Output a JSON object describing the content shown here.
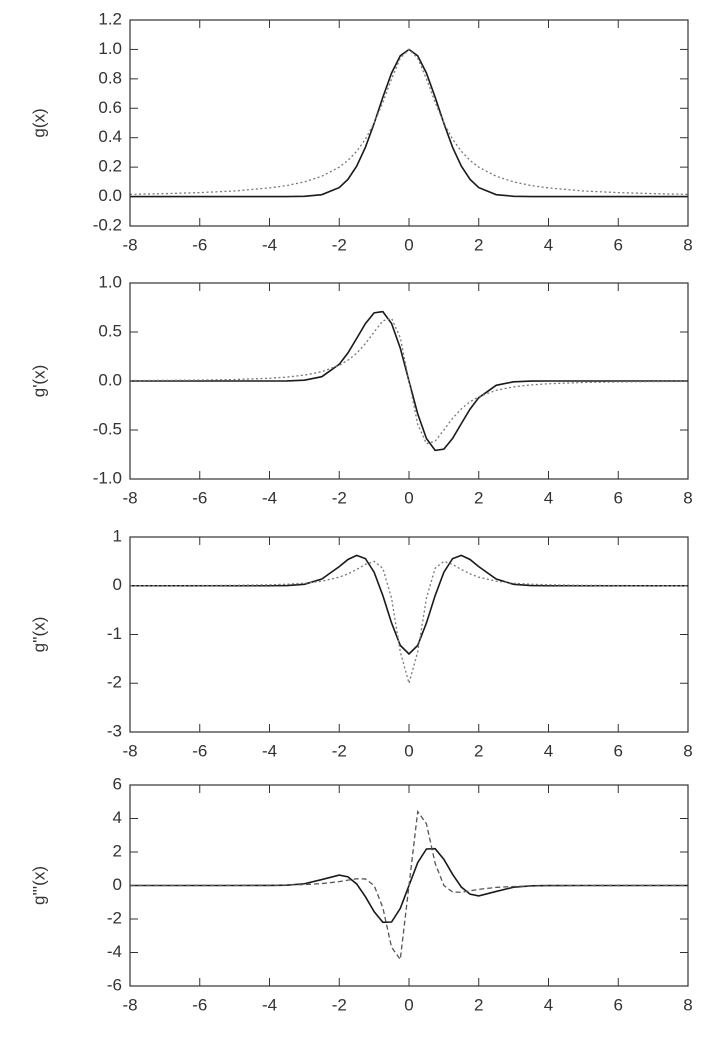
{
  "chart_data": [
    {
      "type": "line",
      "ylabel": "g(x)",
      "xlim": [
        -8,
        8
      ],
      "xticks": [
        -8,
        -6,
        -4,
        -2,
        0,
        2,
        4,
        6,
        8
      ],
      "ylim": [
        -0.2,
        1.2
      ],
      "yticks": [
        -0.2,
        {
          "value": 0,
          "label": "0.0"
        },
        0.2,
        0.4,
        0.6,
        0.8,
        {
          "value": 1,
          "label": "1.0"
        },
        1.2
      ],
      "x": [
        -8,
        -7,
        -6,
        -5,
        -4,
        -3.5,
        -3,
        -2.5,
        -2,
        -1.75,
        -1.5,
        -1.25,
        -1,
        -0.75,
        -0.5,
        -0.25,
        0,
        0.25,
        0.5,
        0.75,
        1,
        1.25,
        1.5,
        1.75,
        2,
        2.5,
        3,
        3.5,
        4,
        5,
        6,
        7,
        8
      ],
      "series": [
        {
          "color": "#1a1a1a",
          "dash": "solid",
          "values": [
            0,
            0,
            0,
            0,
            0,
            0,
            0.002,
            0.013,
            0.061,
            0.117,
            0.207,
            0.335,
            0.497,
            0.675,
            0.839,
            0.957,
            1,
            0.957,
            0.839,
            0.675,
            0.497,
            0.335,
            0.207,
            0.117,
            0.061,
            0.013,
            0.002,
            0,
            0,
            0,
            0,
            0,
            0
          ]
        },
        {
          "color": "#777777",
          "dash": "dotted",
          "values": [
            0.015,
            0.02,
            0.027,
            0.038,
            0.059,
            0.075,
            0.1,
            0.138,
            0.2,
            0.246,
            0.308,
            0.39,
            0.5,
            0.64,
            0.8,
            0.941,
            1,
            0.941,
            0.8,
            0.64,
            0.5,
            0.39,
            0.308,
            0.246,
            0.2,
            0.138,
            0.1,
            0.075,
            0.059,
            0.038,
            0.027,
            0.02,
            0.015
          ]
        }
      ]
    },
    {
      "type": "line",
      "ylabel": "g'(x)",
      "xlim": [
        -8,
        8
      ],
      "xticks": [
        -8,
        -6,
        -4,
        -2,
        0,
        2,
        4,
        6,
        8
      ],
      "ylim": [
        -1,
        1
      ],
      "yticks": [
        {
          "value": -1,
          "label": "-1.0"
        },
        -0.5,
        {
          "value": 0,
          "label": "0.0"
        },
        0.5,
        {
          "value": 1,
          "label": "1.0"
        }
      ],
      "x": [
        -8,
        -7,
        -6,
        -5,
        -4,
        -3.5,
        -3,
        -2.5,
        -2,
        -1.75,
        -1.5,
        -1.25,
        -1,
        -0.75,
        -0.5,
        -0.25,
        0,
        0.25,
        0.5,
        0.75,
        1,
        1.25,
        1.5,
        1.75,
        2,
        2.5,
        3,
        3.5,
        4,
        5,
        6,
        7,
        8
      ],
      "series": [
        {
          "color": "#1a1a1a",
          "dash": "solid",
          "values": [
            0,
            0,
            0,
            0,
            0,
            0.001,
            0.008,
            0.044,
            0.17,
            0.287,
            0.435,
            0.586,
            0.695,
            0.708,
            0.587,
            0.335,
            0,
            -0.335,
            -0.587,
            -0.708,
            -0.695,
            -0.586,
            -0.435,
            -0.287,
            -0.17,
            -0.044,
            -0.008,
            -0.001,
            0,
            0,
            0,
            0,
            0
          ]
        },
        {
          "color": "#777777",
          "dash": "dotted",
          "values": [
            0.004,
            0.006,
            0.009,
            0.015,
            0.028,
            0.04,
            0.06,
            0.095,
            0.16,
            0.212,
            0.284,
            0.381,
            0.5,
            0.614,
            0.64,
            0.443,
            0,
            -0.443,
            -0.64,
            -0.614,
            -0.5,
            -0.381,
            -0.284,
            -0.212,
            -0.16,
            -0.095,
            -0.06,
            -0.04,
            -0.028,
            -0.015,
            -0.009,
            -0.006,
            -0.004
          ]
        }
      ]
    },
    {
      "type": "line",
      "ylabel": "g''(x)",
      "xlim": [
        -8,
        8
      ],
      "xticks": [
        -8,
        -6,
        -4,
        -2,
        0,
        2,
        4,
        6,
        8
      ],
      "ylim": [
        -3,
        1
      ],
      "yticks": [
        -3,
        -2,
        -1,
        0,
        1
      ],
      "x": [
        -8,
        -7,
        -6,
        -5,
        -4,
        -3.5,
        -3,
        -2.5,
        -2,
        -1.75,
        -1.5,
        -1.25,
        -1,
        -0.75,
        -0.5,
        -0.25,
        0,
        0.25,
        0.5,
        0.75,
        1,
        1.25,
        1.5,
        1.75,
        2,
        2.5,
        3,
        3.5,
        4,
        5,
        6,
        7,
        8
      ],
      "series": [
        {
          "color": "#1a1a1a",
          "dash": "solid",
          "values": [
            0,
            0,
            0,
            0,
            0,
            0.004,
            0.03,
            0.137,
            0.393,
            0.539,
            0.623,
            0.557,
            0.278,
            -0.201,
            -0.763,
            -1.223,
            -1.4,
            -1.223,
            -0.763,
            -0.201,
            0.278,
            0.557,
            0.623,
            0.539,
            0.393,
            0.137,
            0.03,
            0.004,
            0,
            0,
            0,
            0,
            0
          ]
        },
        {
          "color": "#777777",
          "dash": "dotted",
          "values": [
            0.001,
            0.002,
            0.004,
            0.008,
            0.019,
            0.031,
            0.052,
            0.093,
            0.176,
            0.244,
            0.335,
            0.438,
            0.5,
            0.36,
            -0.256,
            -1.355,
            -2,
            -1.355,
            -0.256,
            0.36,
            0.5,
            0.438,
            0.335,
            0.244,
            0.176,
            0.093,
            0.052,
            0.031,
            0.019,
            0.008,
            0.004,
            0.002,
            0.001
          ]
        }
      ]
    },
    {
      "type": "line",
      "ylabel": "g'''(x)",
      "xlim": [
        -8,
        8
      ],
      "xticks": [
        -8,
        -6,
        -4,
        -2,
        0,
        2,
        4,
        6,
        8
      ],
      "ylim": [
        -6,
        6
      ],
      "yticks": [
        -6,
        -4,
        -2,
        0,
        2,
        4,
        6
      ],
      "x": [
        -8,
        -7,
        -6,
        -5,
        -4,
        -3.5,
        -3,
        -2.5,
        -2,
        -1.75,
        -1.5,
        -1.25,
        -1,
        -0.75,
        -0.5,
        -0.25,
        0,
        0.25,
        0.5,
        0.75,
        1,
        1.25,
        1.5,
        1.75,
        2,
        2.5,
        3,
        3.5,
        4,
        5,
        6,
        7,
        8
      ],
      "series": [
        {
          "color": "#1a1a1a",
          "dash": "solid",
          "values": [
            0,
            0,
            0,
            0,
            0.002,
            0.018,
            0.104,
            0.355,
            0.622,
            0.517,
            0.091,
            -0.667,
            -1.559,
            -2.195,
            -2.179,
            -1.366,
            0,
            1.366,
            2.179,
            2.195,
            1.559,
            0.667,
            -0.091,
            -0.517,
            -0.622,
            -0.355,
            -0.104,
            -0.018,
            -0.002,
            0,
            0,
            0,
            0
          ]
        },
        {
          "color": "#555555",
          "dash": "dashed",
          "values": [
            0.001,
            0.001,
            0.003,
            0.006,
            0.017,
            0.031,
            0.058,
            0.114,
            0.23,
            0.318,
            0.403,
            0.391,
            0,
            -1.321,
            -3.686,
            -4.412,
            0,
            4.412,
            3.686,
            1.321,
            0,
            -0.391,
            -0.403,
            -0.318,
            -0.23,
            -0.114,
            -0.058,
            -0.031,
            -0.017,
            -0.006,
            -0.003,
            -0.001,
            -0.001
          ]
        }
      ]
    }
  ]
}
